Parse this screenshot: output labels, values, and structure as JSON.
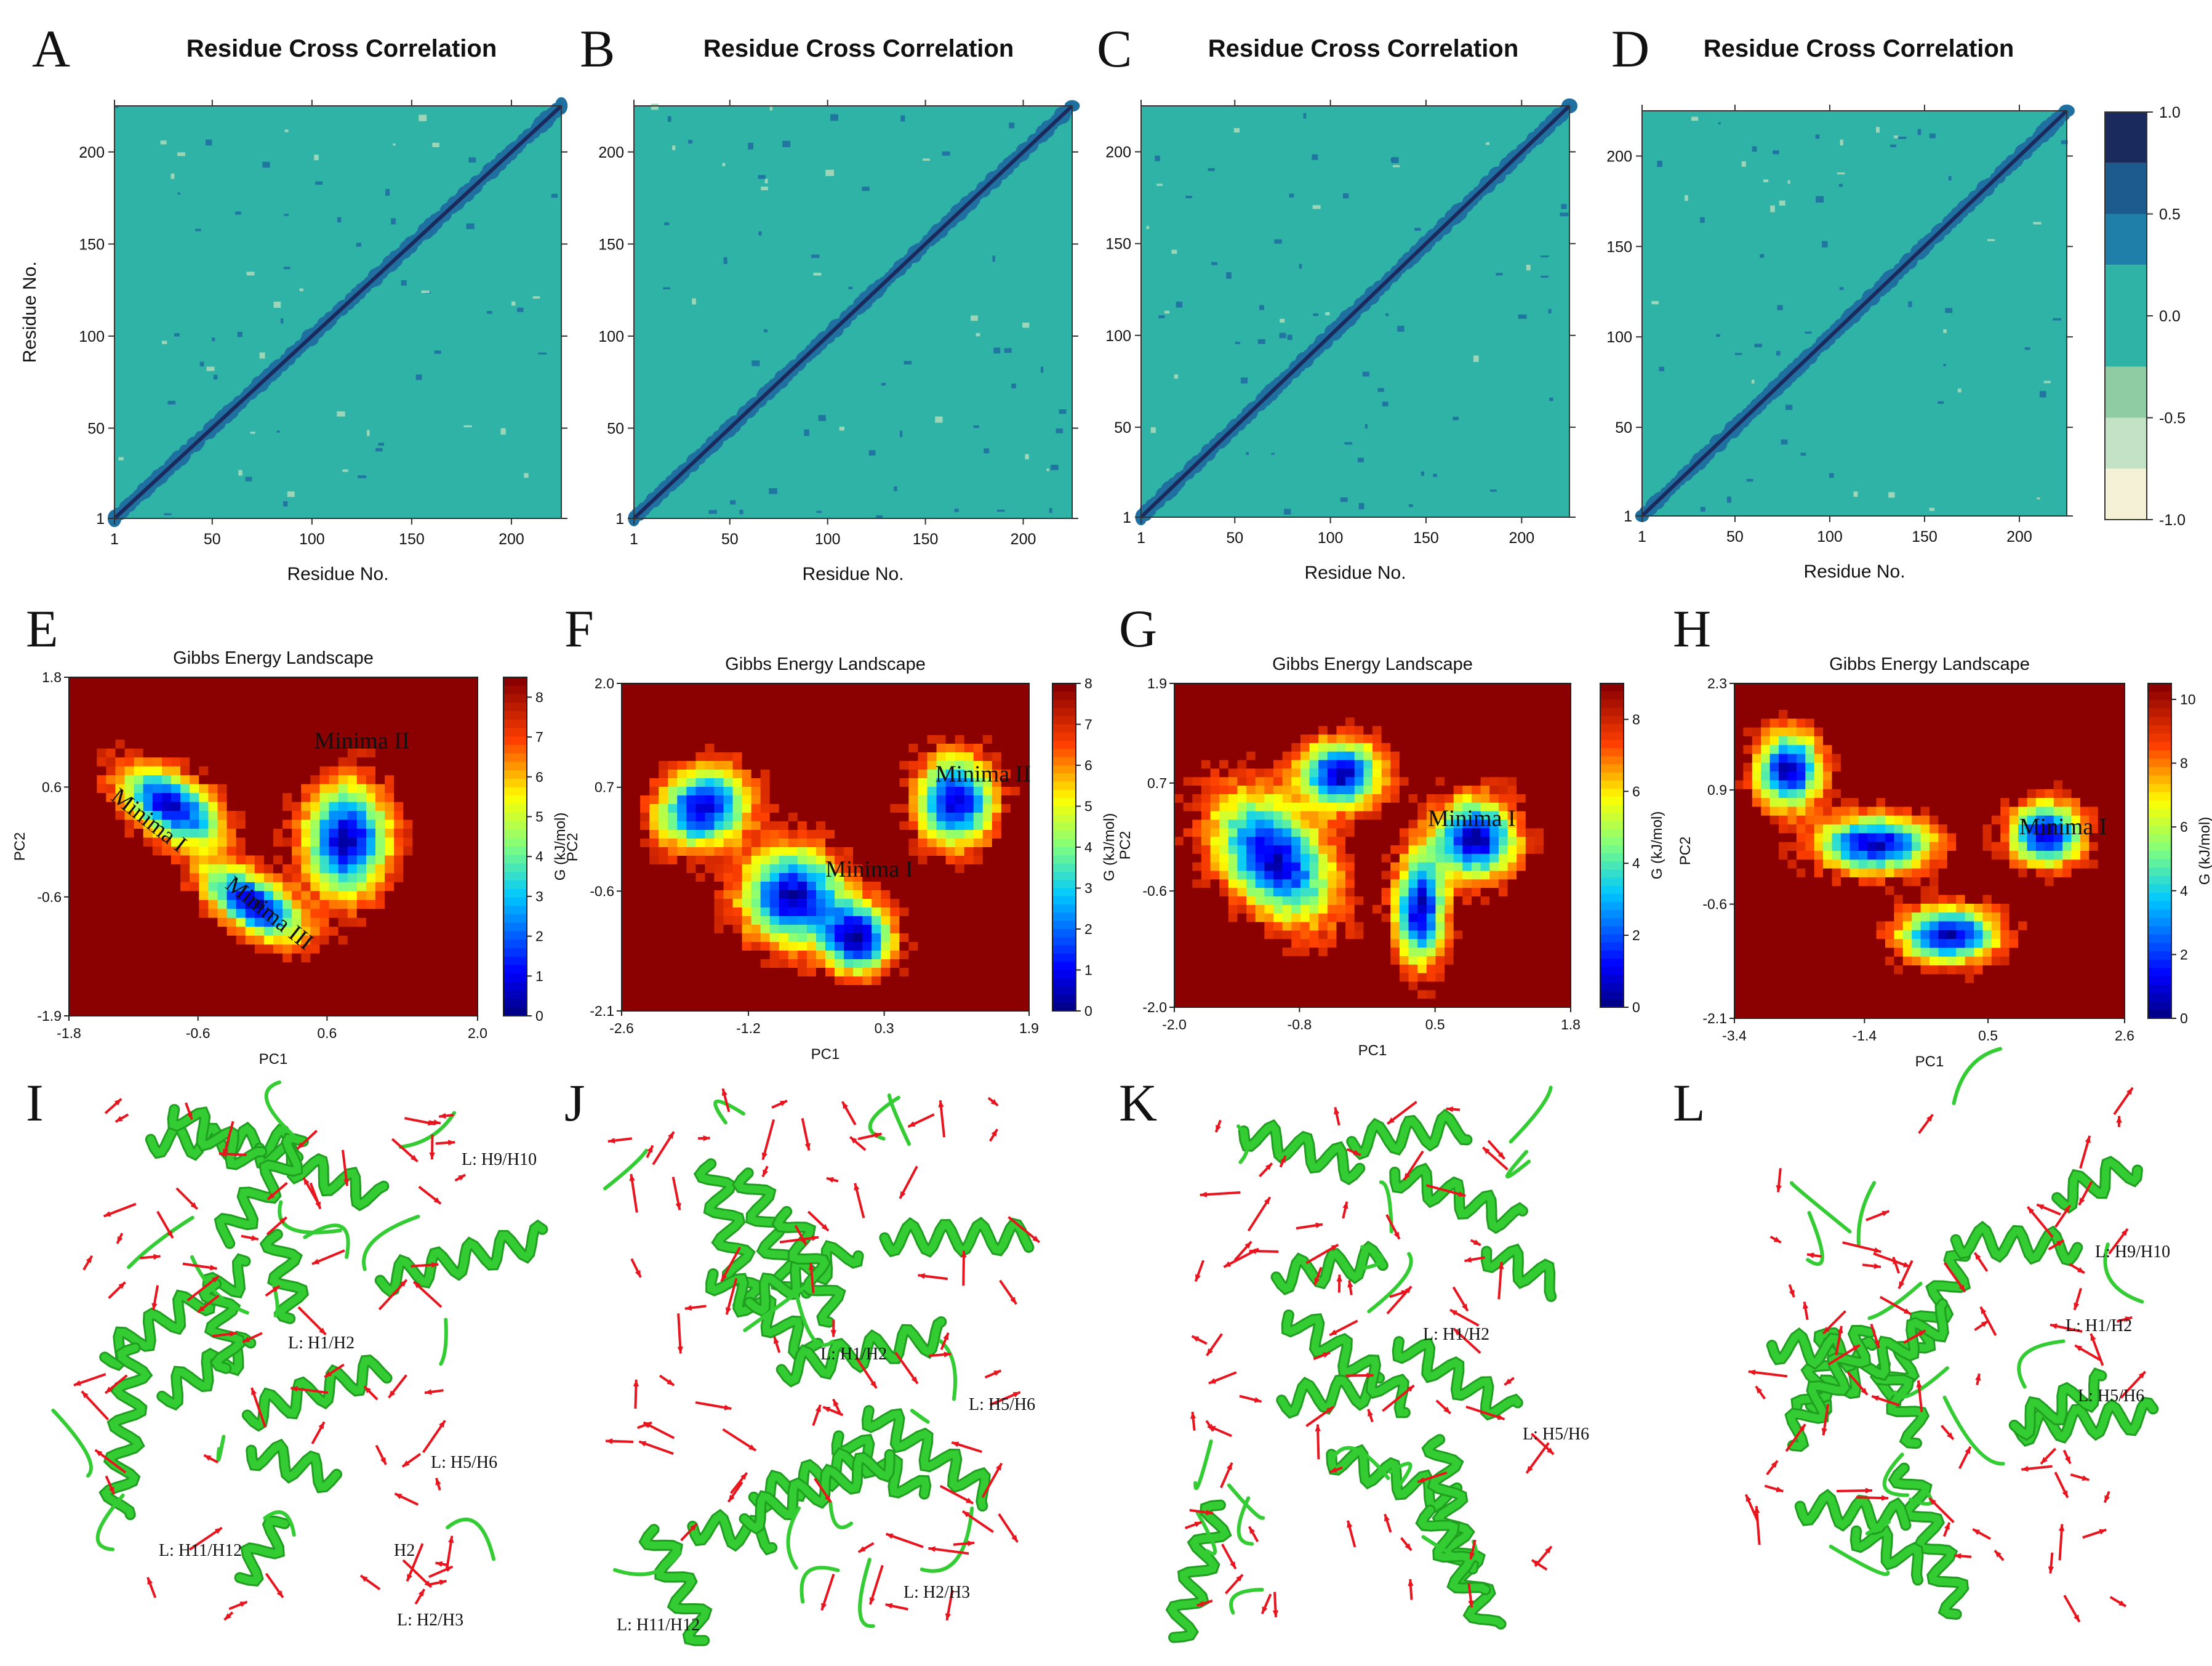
{
  "figure": {
    "panel_letters": [
      "A",
      "B",
      "C",
      "D",
      "E",
      "F",
      "G",
      "H",
      "I",
      "J",
      "K",
      "L"
    ],
    "colors": {
      "dccm_background": "#2eb3a6",
      "dccm_positive": "#1f6fa0",
      "dccm_strong": "#1b2a5c",
      "dccm_negative": "#a8d8b9",
      "gel_low": "#00008b",
      "gel_high": "#8b0000",
      "protein": "#33cc33",
      "vectors": "#e8141e"
    }
  },
  "chart_data": [
    {
      "panel": "A",
      "type": "heatmap",
      "title": "Residue Cross Correlation",
      "xlabel": "Residue No.",
      "ylabel": "Residue No.",
      "xticks": [
        "1",
        "50",
        "100",
        "150",
        "200"
      ],
      "yticks": [
        "1",
        "50",
        "100",
        "150",
        "200"
      ],
      "xlim": [
        1,
        225
      ],
      "ylim": [
        1,
        225
      ]
    },
    {
      "panel": "B",
      "type": "heatmap",
      "title": "Residue Cross Correlation",
      "xlabel": "Residue No.",
      "ylabel": "",
      "xticks": [
        "1",
        "50",
        "100",
        "150",
        "200"
      ],
      "yticks": [
        "1",
        "50",
        "100",
        "150",
        "200"
      ],
      "xlim": [
        1,
        225
      ],
      "ylim": [
        1,
        225
      ]
    },
    {
      "panel": "C",
      "type": "heatmap",
      "title": "Residue Cross Correlation",
      "xlabel": "Residue No.",
      "ylabel": "",
      "xticks": [
        "1",
        "50",
        "100",
        "150",
        "200"
      ],
      "yticks": [
        "1",
        "50",
        "100",
        "150",
        "200"
      ],
      "xlim": [
        1,
        225
      ],
      "ylim": [
        1,
        225
      ]
    },
    {
      "panel": "D",
      "type": "heatmap",
      "title": "Residue Cross Correlation",
      "xlabel": "Residue No.",
      "ylabel": "",
      "xticks": [
        "1",
        "50",
        "100",
        "150",
        "200"
      ],
      "yticks": [
        "1",
        "50",
        "100",
        "150",
        "200"
      ],
      "xlim": [
        1,
        225
      ],
      "ylim": [
        1,
        225
      ],
      "colorbar": {
        "ticks": [
          "1.0",
          "0.5",
          "0.0",
          "-0.5",
          "-1.0"
        ],
        "range": [
          -1,
          1
        ]
      }
    },
    {
      "panel": "E",
      "type": "heatmap",
      "title": "Gibbs Energy Landscape",
      "xlabel": "PC1",
      "ylabel": "PC2",
      "xticks": [
        "-1.8",
        "-0.6",
        "0.6",
        "2.0"
      ],
      "yticks": [
        "1.8",
        "0.6",
        "-0.6",
        "-1.9"
      ],
      "xlim": [
        -1.8,
        2.0
      ],
      "ylim": [
        -1.9,
        1.8
      ],
      "colorbar": {
        "label": "G (kJ/mol)",
        "ticks": [
          "0",
          "1",
          "2",
          "3",
          "4",
          "5",
          "6",
          "7",
          "8"
        ],
        "range": [
          0,
          8.5
        ]
      },
      "annotations": [
        "Minima II",
        "Minima I",
        "Minima III"
      ]
    },
    {
      "panel": "F",
      "type": "heatmap",
      "title": "Gibbs Energy Landscape",
      "xlabel": "PC1",
      "ylabel": "PC2",
      "xticks": [
        "-2.6",
        "-1.2",
        "0.3",
        "1.9"
      ],
      "yticks": [
        "2.0",
        "0.7",
        "-0.6",
        "-2.1"
      ],
      "xlim": [
        -2.6,
        1.9
      ],
      "ylim": [
        -2.1,
        2.0
      ],
      "colorbar": {
        "label": "G (kJ/mol)",
        "ticks": [
          "0",
          "1",
          "2",
          "3",
          "4",
          "5",
          "6",
          "7",
          "8"
        ],
        "range": [
          0,
          8
        ]
      },
      "annotations": [
        "Minima II",
        "Minima I"
      ]
    },
    {
      "panel": "G",
      "type": "heatmap",
      "title": "Gibbs Energy Landscape",
      "xlabel": "PC1",
      "ylabel": "PC2",
      "xticks": [
        "-2.0",
        "-0.8",
        "0.5",
        "1.8"
      ],
      "yticks": [
        "1.9",
        "0.7",
        "-0.6",
        "-2.0"
      ],
      "xlim": [
        -2.0,
        1.8
      ],
      "ylim": [
        -2.0,
        1.9
      ],
      "colorbar": {
        "label": "G (kJ/mol)",
        "ticks": [
          "0",
          "2",
          "4",
          "6",
          "8"
        ],
        "range": [
          0,
          9
        ]
      },
      "annotations": [
        "Minima I"
      ]
    },
    {
      "panel": "H",
      "type": "heatmap",
      "title": "Gibbs Energy Landscape",
      "xlabel": "PC1",
      "ylabel": "PC2",
      "xticks": [
        "-3.4",
        "-1.4",
        "0.5",
        "2.6"
      ],
      "yticks": [
        "2.3",
        "0.9",
        "-0.6",
        "-2.1"
      ],
      "xlim": [
        -3.4,
        2.6
      ],
      "ylim": [
        -2.1,
        2.3
      ],
      "colorbar": {
        "label": "G (kJ/mol)",
        "ticks": [
          "0",
          "2",
          "4",
          "6",
          "8",
          "10"
        ],
        "range": [
          0,
          10.5
        ]
      },
      "annotations": [
        "Minima I"
      ]
    }
  ],
  "structures": [
    {
      "panel": "I",
      "labels": [
        "L: H9/H10",
        "L: H1/H2",
        "L: H5/H6",
        "L: H11/H12",
        "H2",
        "L: H2/H3"
      ]
    },
    {
      "panel": "J",
      "labels": [
        "L: H1/H2",
        "L: H5/H6",
        "L: H11/H12",
        "L: H2/H3"
      ]
    },
    {
      "panel": "K",
      "labels": [
        "L: H1/H2",
        "L: H5/H6"
      ]
    },
    {
      "panel": "L",
      "labels": [
        "L: H9/H10",
        "L: H1/H2",
        "L: H5/H6"
      ]
    }
  ]
}
